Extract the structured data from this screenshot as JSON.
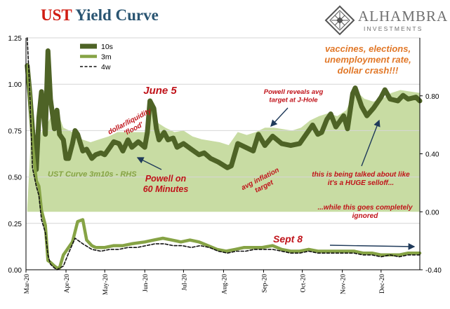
{
  "header": {
    "title_prefix": "UST",
    "title_rest": "Yield Curve",
    "logo_name": "ALHAMBRA",
    "logo_sub": "INVESTMENTS"
  },
  "chart_data": {
    "type": "line",
    "y_left": {
      "ylim": [
        0,
        1.25
      ],
      "ticks": [
        "0.00",
        "0.25",
        "0.50",
        "0.75",
        "1.00",
        "1.25"
      ]
    },
    "y_right": {
      "ylim": [
        -0.4,
        1.2
      ],
      "ticks": [
        "-0.40",
        "0.00",
        "0.40",
        "0.80"
      ]
    },
    "x_ticks": [
      "Mar-20",
      "Apr-20",
      "May-20",
      "Jun-20",
      "Jul-20",
      "Aug-20",
      "Sep-20",
      "Oct-20",
      "Nov-20",
      "Dec-20"
    ],
    "grid": true,
    "legend_position": "top-left",
    "series": [
      {
        "name": "10s",
        "axis": "left",
        "color": "#4e6326",
        "x": [
          "2020-03-02",
          "2020-03-04",
          "2020-03-06",
          "2020-03-09",
          "2020-03-11",
          "2020-03-13",
          "2020-03-16",
          "2020-03-18",
          "2020-03-20",
          "2020-03-23",
          "2020-03-25",
          "2020-03-27",
          "2020-03-30",
          "2020-04-01",
          "2020-04-03",
          "2020-04-06",
          "2020-04-08",
          "2020-04-10",
          "2020-04-14",
          "2020-04-17",
          "2020-04-21",
          "2020-04-24",
          "2020-04-28",
          "2020-05-01",
          "2020-05-05",
          "2020-05-08",
          "2020-05-12",
          "2020-05-15",
          "2020-05-19",
          "2020-05-22",
          "2020-05-27",
          "2020-06-01",
          "2020-06-03",
          "2020-06-05",
          "2020-06-08",
          "2020-06-10",
          "2020-06-12",
          "2020-06-16",
          "2020-06-19",
          "2020-06-23",
          "2020-06-26",
          "2020-07-01",
          "2020-07-07",
          "2020-07-13",
          "2020-07-17",
          "2020-07-22",
          "2020-07-28",
          "2020-08-04",
          "2020-08-07",
          "2020-08-12",
          "2020-08-18",
          "2020-08-24",
          "2020-08-28",
          "2020-09-02",
          "2020-09-08",
          "2020-09-15",
          "2020-09-22",
          "2020-09-29",
          "2020-10-06",
          "2020-10-09",
          "2020-10-13",
          "2020-10-16",
          "2020-10-20",
          "2020-10-23",
          "2020-10-27",
          "2020-11-02",
          "2020-11-05",
          "2020-11-09",
          "2020-11-11",
          "2020-11-16",
          "2020-11-20",
          "2020-11-25",
          "2020-12-01",
          "2020-12-04",
          "2020-12-08",
          "2020-12-14",
          "2020-12-18",
          "2020-12-22",
          "2020-12-28",
          "2020-12-31"
        ],
        "y": [
          1.1,
          0.95,
          0.76,
          0.54,
          0.82,
          0.96,
          0.73,
          1.18,
          0.92,
          0.76,
          0.86,
          0.73,
          0.7,
          0.6,
          0.6,
          0.68,
          0.75,
          0.73,
          0.64,
          0.65,
          0.6,
          0.62,
          0.63,
          0.62,
          0.66,
          0.69,
          0.68,
          0.64,
          0.7,
          0.66,
          0.69,
          0.66,
          0.74,
          0.91,
          0.87,
          0.76,
          0.7,
          0.74,
          0.7,
          0.71,
          0.66,
          0.68,
          0.65,
          0.62,
          0.63,
          0.6,
          0.58,
          0.55,
          0.56,
          0.68,
          0.66,
          0.64,
          0.73,
          0.67,
          0.72,
          0.68,
          0.67,
          0.68,
          0.75,
          0.78,
          0.73,
          0.74,
          0.81,
          0.84,
          0.77,
          0.83,
          0.76,
          0.95,
          0.98,
          0.88,
          0.83,
          0.87,
          0.93,
          0.97,
          0.92,
          0.91,
          0.94,
          0.92,
          0.93,
          0.91
        ]
      },
      {
        "name": "3m",
        "axis": "left",
        "color": "#86a345",
        "x": [
          "2020-03-02",
          "2020-03-04",
          "2020-03-06",
          "2020-03-09",
          "2020-03-11",
          "2020-03-13",
          "2020-03-16",
          "2020-03-18",
          "2020-03-20",
          "2020-03-23",
          "2020-03-25",
          "2020-03-27",
          "2020-03-30",
          "2020-04-01",
          "2020-04-06",
          "2020-04-10",
          "2020-04-14",
          "2020-04-17",
          "2020-04-21",
          "2020-04-24",
          "2020-05-01",
          "2020-05-08",
          "2020-05-15",
          "2020-05-22",
          "2020-06-01",
          "2020-06-08",
          "2020-06-15",
          "2020-06-22",
          "2020-06-29",
          "2020-07-06",
          "2020-07-13",
          "2020-07-20",
          "2020-07-27",
          "2020-08-03",
          "2020-08-10",
          "2020-08-17",
          "2020-08-24",
          "2020-08-31",
          "2020-09-08",
          "2020-09-15",
          "2020-09-22",
          "2020-09-29",
          "2020-10-06",
          "2020-10-13",
          "2020-10-20",
          "2020-10-27",
          "2020-11-03",
          "2020-11-10",
          "2020-11-17",
          "2020-11-24",
          "2020-12-01",
          "2020-12-08",
          "2020-12-15",
          "2020-12-22",
          "2020-12-31"
        ],
        "y": [
          1.1,
          0.95,
          0.68,
          0.48,
          0.45,
          0.32,
          0.24,
          0.05,
          0.04,
          0.02,
          0.01,
          0.01,
          0.08,
          0.1,
          0.15,
          0.26,
          0.27,
          0.16,
          0.13,
          0.12,
          0.12,
          0.13,
          0.13,
          0.14,
          0.15,
          0.16,
          0.17,
          0.16,
          0.15,
          0.16,
          0.15,
          0.13,
          0.11,
          0.1,
          0.11,
          0.12,
          0.12,
          0.12,
          0.13,
          0.11,
          0.1,
          0.1,
          0.11,
          0.1,
          0.1,
          0.1,
          0.1,
          0.1,
          0.09,
          0.09,
          0.08,
          0.08,
          0.08,
          0.09,
          0.09
        ]
      },
      {
        "name": "4w",
        "axis": "left",
        "color": "#111111",
        "x": [
          "2020-03-02",
          "2020-03-04",
          "2020-03-06",
          "2020-03-09",
          "2020-03-11",
          "2020-03-13",
          "2020-03-16",
          "2020-03-18",
          "2020-03-20",
          "2020-03-23",
          "2020-03-25",
          "2020-03-30",
          "2020-04-03",
          "2020-04-08",
          "2020-04-14",
          "2020-04-21",
          "2020-04-28",
          "2020-05-05",
          "2020-05-12",
          "2020-05-19",
          "2020-05-26",
          "2020-06-02",
          "2020-06-09",
          "2020-06-16",
          "2020-06-23",
          "2020-06-30",
          "2020-07-07",
          "2020-07-14",
          "2020-07-21",
          "2020-07-28",
          "2020-08-04",
          "2020-08-11",
          "2020-08-18",
          "2020-08-25",
          "2020-09-01",
          "2020-09-08",
          "2020-09-15",
          "2020-09-22",
          "2020-09-29",
          "2020-10-06",
          "2020-10-13",
          "2020-10-20",
          "2020-10-27",
          "2020-11-03",
          "2020-11-10",
          "2020-11-17",
          "2020-11-24",
          "2020-12-01",
          "2020-12-08",
          "2020-12-15",
          "2020-12-22",
          "2020-12-31"
        ],
        "y": [
          1.25,
          0.95,
          0.55,
          0.45,
          0.4,
          0.27,
          0.2,
          0.08,
          0.03,
          0.01,
          0.0,
          0.02,
          0.09,
          0.17,
          0.14,
          0.11,
          0.1,
          0.11,
          0.11,
          0.12,
          0.12,
          0.13,
          0.14,
          0.14,
          0.13,
          0.13,
          0.12,
          0.13,
          0.12,
          0.1,
          0.09,
          0.1,
          0.1,
          0.11,
          0.11,
          0.11,
          0.1,
          0.09,
          0.09,
          0.1,
          0.09,
          0.09,
          0.09,
          0.09,
          0.09,
          0.08,
          0.08,
          0.07,
          0.08,
          0.07,
          0.08,
          0.08
        ]
      },
      {
        "name": "UST Curve 3m10s - RHS",
        "axis": "right",
        "type": "area",
        "color": "#c8dca3",
        "x": [
          "2020-03-02",
          "2020-03-05",
          "2020-03-09",
          "2020-03-13",
          "2020-03-17",
          "2020-03-20",
          "2020-03-25",
          "2020-03-30",
          "2020-04-06",
          "2020-04-13",
          "2020-04-20",
          "2020-04-27",
          "2020-05-04",
          "2020-05-11",
          "2020-05-18",
          "2020-05-25",
          "2020-06-01",
          "2020-06-05",
          "2020-06-10",
          "2020-06-17",
          "2020-06-24",
          "2020-07-01",
          "2020-07-08",
          "2020-07-15",
          "2020-07-22",
          "2020-07-29",
          "2020-08-05",
          "2020-08-12",
          "2020-08-19",
          "2020-08-26",
          "2020-09-02",
          "2020-09-09",
          "2020-09-16",
          "2020-09-23",
          "2020-09-30",
          "2020-10-07",
          "2020-10-14",
          "2020-10-21",
          "2020-10-28",
          "2020-11-04",
          "2020-11-11",
          "2020-11-18",
          "2020-11-25",
          "2020-12-02",
          "2020-12-09",
          "2020-12-16",
          "2020-12-23",
          "2020-12-31"
        ],
        "y": [
          0.02,
          0.55,
          0.35,
          0.55,
          0.6,
          0.65,
          0.7,
          0.58,
          0.55,
          0.5,
          0.48,
          0.5,
          0.52,
          0.55,
          0.55,
          0.55,
          0.55,
          0.72,
          0.62,
          0.58,
          0.55,
          0.56,
          0.52,
          0.5,
          0.49,
          0.48,
          0.46,
          0.55,
          0.53,
          0.55,
          0.58,
          0.58,
          0.57,
          0.56,
          0.58,
          0.63,
          0.66,
          0.68,
          0.66,
          0.7,
          0.84,
          0.78,
          0.76,
          0.78,
          0.82,
          0.84,
          0.83,
          0.82
        ]
      }
    ],
    "annotations": [
      {
        "text": "June 5",
        "color": "#c0131a"
      },
      {
        "text": "dollar/liquidity 'flood'",
        "color": "#c0131a"
      },
      {
        "text": "Powell reveals avg target at J-Hole",
        "color": "#c0131a"
      },
      {
        "text": "vaccines, elections, unemployment rate, dollar crash!!!",
        "color": "#e17727"
      },
      {
        "text": "UST Curve 3m10s - RHS",
        "color": "#86a345"
      },
      {
        "text": "Powell on 60 Minutes",
        "color": "#c0131a"
      },
      {
        "text": "avg inflation target",
        "color": "#c0131a"
      },
      {
        "text": "this is being talked about like it's a HUGE selloff...",
        "color": "#c0131a"
      },
      {
        "text": "...while this goes completely ignored",
        "color": "#c0131a"
      },
      {
        "text": "Sept 8",
        "color": "#c0131a"
      }
    ]
  }
}
